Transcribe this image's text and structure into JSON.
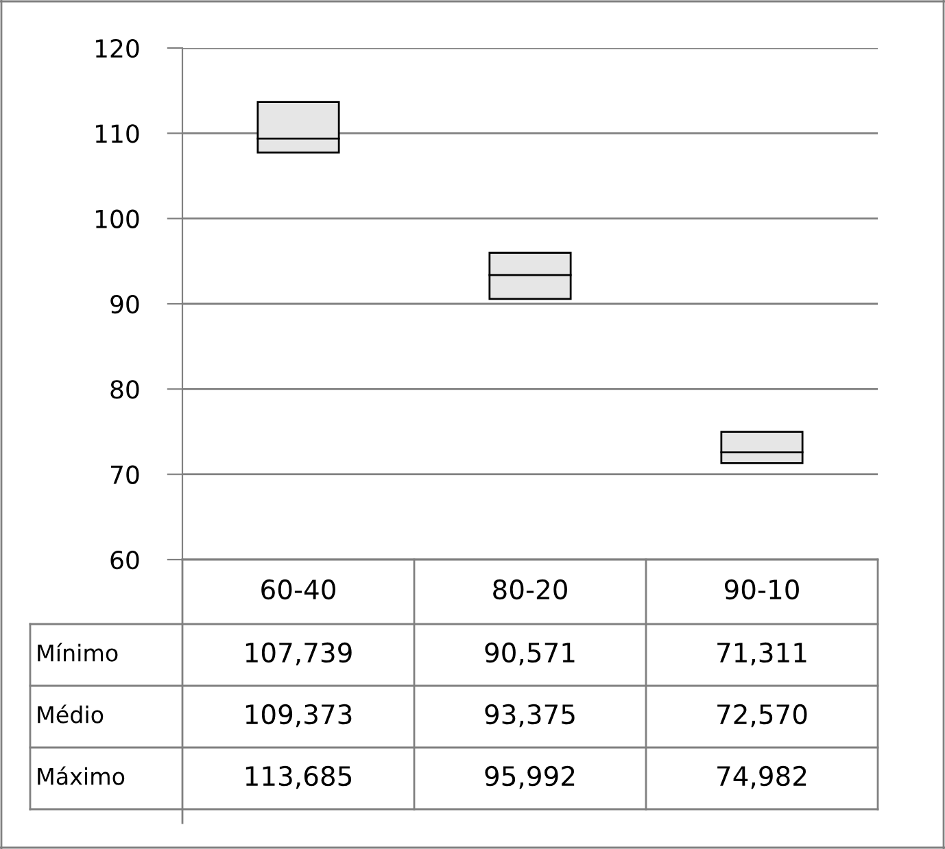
{
  "chart_data": {
    "type": "box",
    "categories": [
      "60-40",
      "80-20",
      "90-10"
    ],
    "boxes": [
      {
        "low": 107.739,
        "q1": 107.739,
        "median": 109.373,
        "q3": 113.685,
        "high": 113.685
      },
      {
        "low": 90.571,
        "q1": 90.571,
        "median": 93.375,
        "q3": 95.992,
        "high": 95.992
      },
      {
        "low": 71.311,
        "q1": 71.311,
        "median": 72.57,
        "q3": 74.982,
        "high": 74.982
      }
    ],
    "annotations": [
      "Mínimo",
      "107,739",
      "90,571",
      "71,311",
      "Médio",
      "109,373",
      "93,375",
      "72,570",
      "Máximo",
      "113,685",
      "95,992",
      "74,982"
    ],
    "color": "#e6e6e6",
    "ylim": [
      60,
      120
    ],
    "yticks": [
      60,
      70,
      80,
      90,
      100,
      110,
      120
    ],
    "grid": "y"
  }
}
